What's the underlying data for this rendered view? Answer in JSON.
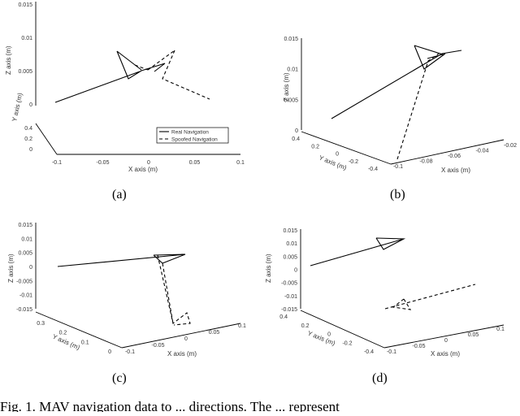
{
  "chart_data": [
    {
      "type": "line",
      "panel_label": "(a)",
      "xlabel": "X axis (m)",
      "ylabel": "Y axis (m)",
      "zlabel": "Z axis (m)",
      "x_ticks": [
        "-0.1",
        "-0.05",
        "0",
        "0.05",
        "0.1"
      ],
      "y_ticks": [
        "0",
        "0.2",
        "0.4"
      ],
      "z_ticks": [
        "0",
        "0.005",
        "0.01",
        "0.015"
      ],
      "legend": {
        "placement": "bottom-right",
        "entries": [
          "Real Navigation",
          "Spoofed Navigation"
        ]
      },
      "series": [
        {
          "name": "Real Navigation",
          "style": "solid"
        },
        {
          "name": "Spoofed Navigation",
          "style": "dashed"
        }
      ]
    },
    {
      "type": "line",
      "panel_label": "(b)",
      "xlabel": "X axis (m)",
      "ylabel": "Y axis (m)",
      "zlabel": "Z axis (m)",
      "x_ticks": [
        "-0.1",
        "-0.08",
        "-0.06",
        "-0.04",
        "-0.02"
      ],
      "y_ticks": [
        "-0.4",
        "-0.2",
        "0",
        "0.2",
        "0.4"
      ],
      "z_ticks": [
        "0",
        "0.005",
        "0.01",
        "0.015"
      ]
    },
    {
      "type": "line",
      "panel_label": "(c)",
      "xlabel": "X axis (m)",
      "ylabel": "Y axis (m)",
      "zlabel": "Z axis (m)",
      "x_ticks": [
        "-0.1",
        "-0.05",
        "0",
        "0.05",
        "0.1"
      ],
      "y_ticks": [
        "0",
        "0.1",
        "0.2",
        "0.3"
      ],
      "z_ticks": [
        "-0.015",
        "-0.01",
        "-0.005",
        "0",
        "0.005",
        "0.01",
        "0.015"
      ]
    },
    {
      "type": "line",
      "panel_label": "(d)",
      "xlabel": "X axis (m)",
      "ylabel": "Y axis (m)",
      "zlabel": "Z axis (m)",
      "x_ticks": [
        "-0.1",
        "-0.05",
        "0",
        "0.05",
        "0.1"
      ],
      "y_ticks": [
        "-0.4",
        "-0.2",
        "0",
        "0.2",
        "0.4"
      ],
      "z_ticks": [
        "-0.015",
        "-0.01",
        "-0.005",
        "0",
        "0.005",
        "0.01",
        "0.015"
      ]
    }
  ],
  "caption_fragment": "Fig. 1.   MAV navigation data to ... directions. The ... represent"
}
